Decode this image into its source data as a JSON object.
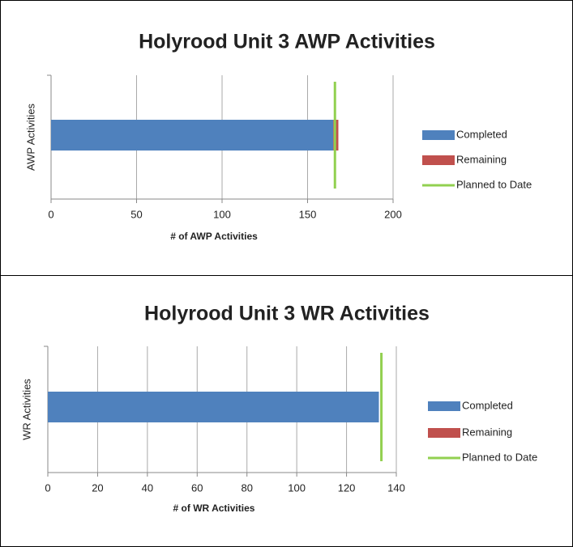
{
  "chart_data": [
    {
      "type": "bar",
      "orientation": "horizontal",
      "stacked": true,
      "title": "Holyrood Unit 3 AWP Activities",
      "x_label": "# of AWP Activities",
      "y_label": "AWP Activities",
      "categories": [
        null
      ],
      "series": [
        {
          "name": "Completed",
          "color": "#4f81bd",
          "values": [
            165
          ]
        },
        {
          "name": "Remaining",
          "color": "#c0504d",
          "values": [
            3
          ]
        },
        {
          "name": "Planned to Date",
          "color": "#92d050",
          "kind": "line",
          "values": [
            166
          ]
        }
      ],
      "xlim": [
        0,
        200
      ],
      "xticks": [
        0,
        50,
        100,
        150,
        200
      ],
      "grid": true,
      "legend": "right"
    },
    {
      "type": "bar",
      "orientation": "horizontal",
      "stacked": true,
      "title": "Holyrood Unit 3 WR Activities",
      "x_label": "# of WR Activities",
      "y_label": "WR Activities",
      "categories": [
        null
      ],
      "series": [
        {
          "name": "Completed",
          "color": "#4f81bd",
          "values": [
            133
          ]
        },
        {
          "name": "Remaining",
          "color": "#c0504d",
          "values": [
            0
          ]
        },
        {
          "name": "Planned to Date",
          "color": "#92d050",
          "kind": "line",
          "values": [
            134
          ]
        }
      ],
      "xlim": [
        0,
        140
      ],
      "xticks": [
        0,
        20,
        40,
        60,
        80,
        100,
        120,
        140
      ],
      "grid": true,
      "legend": "right"
    }
  ]
}
